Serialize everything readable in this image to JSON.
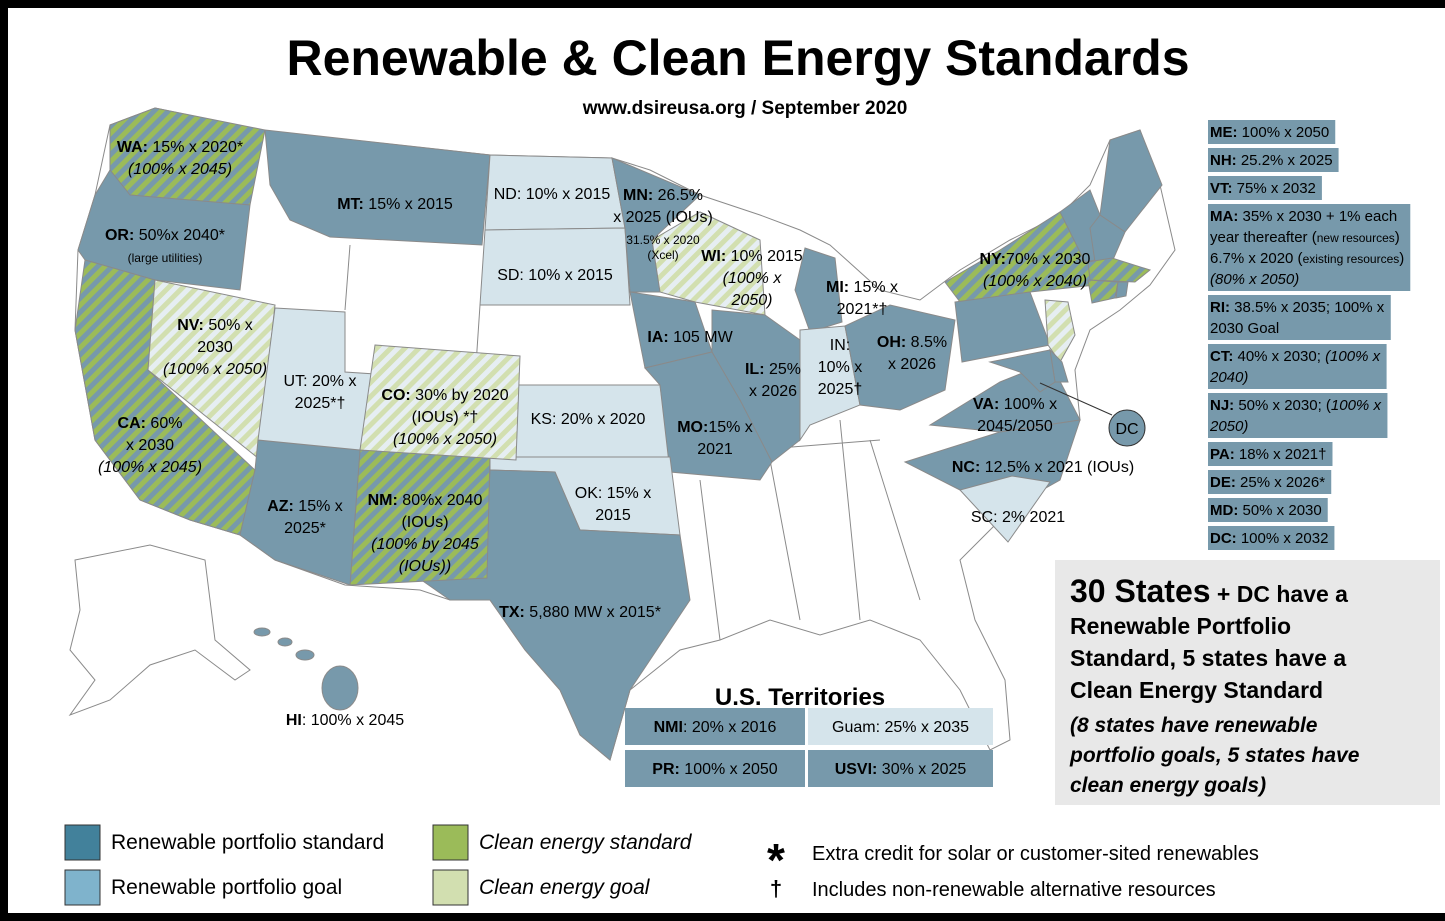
{
  "title": "Renewable & Clean Energy Standards",
  "subtitle": "www.dsireusa.org / September 2020",
  "colors": {
    "rps": "#7799ab",
    "rps_goal": "#d5e4eb",
    "ces": [
      "#9bbb59",
      "#7799ab"
    ],
    "ces_goal": [
      "#d2dfb0",
      "#e6eef2"
    ]
  },
  "states": [
    {
      "category": "ces",
      "lines": [
        [
          {
            "text": "WA:",
            "style": "b"
          },
          {
            "text": " 15% x 2020*"
          }
        ],
        [
          {
            "text": "(100% x 2045)",
            "style": "i"
          }
        ]
      ]
    },
    {
      "category": "rps",
      "lines": [
        [
          {
            "text": "OR:",
            "style": "b"
          },
          {
            "text": " 50%x 2040*"
          }
        ],
        [
          {
            "text": "(large utilities)",
            "style": "s"
          }
        ]
      ]
    },
    {
      "category": "ces",
      "lines": [
        [
          {
            "text": "CA:",
            "style": "b"
          },
          {
            "text": " 60%"
          }
        ],
        [
          {
            "text": "x 2030"
          }
        ],
        [
          {
            "text": "(100% x 2045)",
            "style": "i"
          }
        ]
      ]
    },
    {
      "category": "ces_goal",
      "lines": [
        [
          {
            "text": "NV:",
            "style": "b"
          },
          {
            "text": " 50% x"
          }
        ],
        [
          {
            "text": "2030"
          }
        ],
        [
          {
            "text": "(100% x 2050)",
            "style": "i"
          }
        ]
      ]
    },
    {
      "category": "rps",
      "lines": [
        [
          {
            "text": "MT:",
            "style": "b"
          },
          {
            "text": " 15% x 2015"
          }
        ]
      ]
    },
    {
      "category": "rps_goal",
      "lines": [
        [
          {
            "text": "ND: 10% x 2015"
          }
        ]
      ]
    },
    {
      "category": "rps_goal",
      "lines": [
        [
          {
            "text": "SD: 10% x 2015"
          }
        ]
      ]
    },
    {
      "category": "rps",
      "lines": [
        [
          {
            "text": "MN:",
            "style": "b"
          },
          {
            "text": " 26.5%"
          }
        ],
        [
          {
            "text": "x 2025 (IOUs)"
          }
        ],
        [
          {
            "text": "31.5% x 2020",
            "style": "s"
          }
        ],
        [
          {
            "text": "(Xcel)",
            "style": "s"
          }
        ]
      ]
    },
    {
      "category": "ces_goal",
      "lines": [
        [
          {
            "text": "WI:",
            "style": "b"
          },
          {
            "text": " 10% 2015"
          }
        ],
        [
          {
            "text": "(100% x",
            "style": "i"
          }
        ],
        [
          {
            "text": "2050)",
            "style": "i"
          }
        ]
      ]
    },
    {
      "category": "rps",
      "lines": [
        [
          {
            "text": "IA:",
            "style": "b"
          },
          {
            "text": " 105 MW"
          }
        ]
      ]
    },
    {
      "category": "rps",
      "lines": [
        [
          {
            "text": "MI:",
            "style": "b"
          },
          {
            "text": " 15% x"
          }
        ],
        [
          {
            "text": "2021*†"
          }
        ]
      ]
    },
    {
      "category": "rps",
      "lines": [
        [
          {
            "text": "IL:",
            "style": "b"
          },
          {
            "text": " 25%"
          }
        ],
        [
          {
            "text": "x 2026"
          }
        ]
      ]
    },
    {
      "category": "rps_goal",
      "lines": [
        [
          {
            "text": "IN:"
          }
        ],
        [
          {
            "text": "10% x"
          }
        ],
        [
          {
            "text": "2025†"
          }
        ]
      ]
    },
    {
      "category": "rps",
      "lines": [
        [
          {
            "text": "OH:",
            "style": "b"
          },
          {
            "text": " 8.5%"
          }
        ],
        [
          {
            "text": "x 2026"
          }
        ]
      ]
    },
    {
      "category": "ces",
      "lines": [
        [
          {
            "text": "NY:",
            "style": "b"
          },
          {
            "text": "70% x 2030"
          }
        ],
        [
          {
            "text": "(100% x 2040)",
            "style": "i"
          }
        ]
      ]
    },
    {
      "category": "rps",
      "lines": [
        [
          {
            "text": "VA:",
            "style": "b"
          },
          {
            "text": " 100% x"
          }
        ],
        [
          {
            "text": "2045/2050"
          }
        ]
      ]
    },
    {
      "category": "rps",
      "lines": [
        [
          {
            "text": "NC:",
            "style": "b"
          },
          {
            "text": " 12.5% x 2021 (IOUs)"
          }
        ]
      ]
    },
    {
      "category": "rps_goal",
      "lines": [
        [
          {
            "text": "SC: 2% 2021"
          }
        ]
      ]
    },
    {
      "category": "rps_goal",
      "lines": [
        [
          {
            "text": "KS: 20% x 2020"
          }
        ]
      ]
    },
    {
      "category": "rps",
      "lines": [
        [
          {
            "text": "MO:",
            "style": "b"
          },
          {
            "text": "15% x"
          }
        ],
        [
          {
            "text": "2021"
          }
        ]
      ]
    },
    {
      "category": "rps_goal",
      "lines": [
        [
          {
            "text": "OK: 15% x"
          }
        ],
        [
          {
            "text": "2015"
          }
        ]
      ]
    },
    {
      "category": "rps",
      "lines": [
        [
          {
            "text": "TX:",
            "style": "b"
          },
          {
            "text": " 5,880 MW x 2015*"
          }
        ]
      ]
    },
    {
      "category": "ces",
      "lines": [
        [
          {
            "text": "NM:",
            "style": "b"
          },
          {
            "text": " 80%x 2040"
          }
        ],
        [
          {
            "text": "(IOUs)"
          }
        ],
        [
          {
            "text": "(100% by 2045",
            "style": "i"
          }
        ],
        [
          {
            "text": "(IOUs))",
            "style": "i"
          }
        ]
      ]
    },
    {
      "category": "rps",
      "lines": [
        [
          {
            "text": "AZ:",
            "style": "b"
          },
          {
            "text": " 15% x"
          }
        ],
        [
          {
            "text": "2025*"
          }
        ]
      ]
    },
    {
      "category": "rps_goal",
      "lines": [
        [
          {
            "text": "UT: 20% x"
          }
        ],
        [
          {
            "text": "2025*†"
          }
        ]
      ]
    },
    {
      "category": "ces_goal",
      "lines": [
        [
          {
            "text": "CO:",
            "style": "b"
          },
          {
            "text": " 30% by 2020"
          }
        ],
        [
          {
            "text": "(IOUs) *†"
          }
        ],
        [
          {
            "text": "(100% x 2050)",
            "style": "i"
          }
        ]
      ]
    },
    {
      "category": "rps",
      "lines": [
        [
          {
            "text": "HI",
            "style": "b"
          },
          {
            "text": ": 100% x 2045"
          }
        ]
      ]
    }
  ],
  "dc_marker": "DC",
  "northeast": [
    {
      "lines": [
        [
          {
            "text": "ME:",
            "style": "b"
          },
          {
            "text": " 100% x 2050"
          }
        ]
      ]
    },
    {
      "lines": [
        [
          {
            "text": "NH:",
            "style": "b"
          },
          {
            "text": " 25.2% x 2025"
          }
        ]
      ]
    },
    {
      "lines": [
        [
          {
            "text": "VT:",
            "style": "b"
          },
          {
            "text": " 75% x 2032"
          }
        ]
      ]
    },
    {
      "lines": [
        [
          {
            "text": "MA:",
            "style": "b"
          },
          {
            "text": " 35% x 2030 + 1% each"
          }
        ],
        [
          {
            "text": "year thereafter ("
          },
          {
            "text": "new resources",
            "style": "s"
          },
          {
            "text": ")"
          }
        ],
        [
          {
            "text": "6.7% x 2020 ("
          },
          {
            "text": "existing resources",
            "style": "s"
          },
          {
            "text": ")"
          }
        ],
        [
          {
            "text": "(80% x 2050)",
            "style": "i"
          }
        ]
      ]
    },
    {
      "lines": [
        [
          {
            "text": "RI:",
            "style": "b"
          },
          {
            "text": " 38.5% x 2035; 100% x"
          }
        ],
        [
          {
            "text": "2030 Goal"
          }
        ]
      ]
    },
    {
      "lines": [
        [
          {
            "text": "CT:",
            "style": "b"
          },
          {
            "text": " 40% x 2030; "
          },
          {
            "text": "(100% x",
            "style": "i"
          }
        ],
        [
          {
            "text": "2040)",
            "style": "i"
          }
        ]
      ]
    },
    {
      "lines": [
        [
          {
            "text": "NJ:",
            "style": "b"
          },
          {
            "text": " 50% x 2030; ("
          },
          {
            "text": "100% x",
            "style": "i"
          }
        ],
        [
          {
            "text": "2050)",
            "style": "i"
          }
        ]
      ]
    },
    {
      "lines": [
        [
          {
            "text": "PA:",
            "style": "b"
          },
          {
            "text": " 18% x 2021†"
          }
        ]
      ]
    },
    {
      "lines": [
        [
          {
            "text": "DE:",
            "style": "b"
          },
          {
            "text": " 25% x 2026*"
          }
        ]
      ]
    },
    {
      "lines": [
        [
          {
            "text": "MD:",
            "style": "b"
          },
          {
            "text": " 50% x 2030"
          }
        ]
      ]
    },
    {
      "lines": [
        [
          {
            "text": "DC:",
            "style": "b"
          },
          {
            "text": " 100% x 2032"
          }
        ]
      ]
    }
  ],
  "territories": {
    "title": "U.S. Territories",
    "items": [
      {
        "category": "rps",
        "lines": [
          [
            {
              "text": "NMI",
              "style": "b"
            },
            {
              "text": ": 20% x 2016"
            }
          ]
        ]
      },
      {
        "category": "rps_goal",
        "lines": [
          [
            {
              "text": "Guam: 25% x 2035"
            }
          ]
        ]
      },
      {
        "category": "rps",
        "lines": [
          [
            {
              "text": "PR:",
              "style": "b"
            },
            {
              "text": " 100% x 2050"
            }
          ]
        ]
      },
      {
        "category": "rps",
        "lines": [
          [
            {
              "text": "USVI:",
              "style": "b"
            },
            {
              "text": " 30% x 2025"
            }
          ]
        ]
      }
    ]
  },
  "summary": {
    "lines": [
      [
        {
          "text": "30 States",
          "style": "B"
        },
        {
          "text": " + DC have a",
          "style": "b"
        }
      ],
      [
        {
          "text": "Renewable Portfolio",
          "style": "b"
        }
      ],
      [
        {
          "text": "Standard, 5 states have a",
          "style": "b"
        }
      ],
      [
        {
          "text": "Clean Energy Standard",
          "style": "b"
        }
      ],
      [
        {
          "text": "(8 states have renewable",
          "style": "bi"
        }
      ],
      [
        {
          "text": "portfolio goals, 5 states have",
          "style": "bi"
        }
      ],
      [
        {
          "text": "clean energy goals)",
          "style": "bi"
        }
      ]
    ]
  },
  "legend": [
    {
      "label": "Renewable portfolio standard",
      "color": "#42819b",
      "style": "n"
    },
    {
      "label": "Renewable portfolio goal",
      "color": "#7fb3cc",
      "style": "n"
    },
    {
      "label": "Clean energy standard",
      "color": "#9bbb59",
      "style": "i"
    },
    {
      "label": "Clean energy goal",
      "color": "#d2dfb0",
      "style": "i"
    }
  ],
  "symbols": [
    {
      "symbol": "*",
      "label": "Extra credit for solar or customer-sited renewables"
    },
    {
      "symbol": "†",
      "label": "Includes non-renewable alternative resources"
    }
  ]
}
